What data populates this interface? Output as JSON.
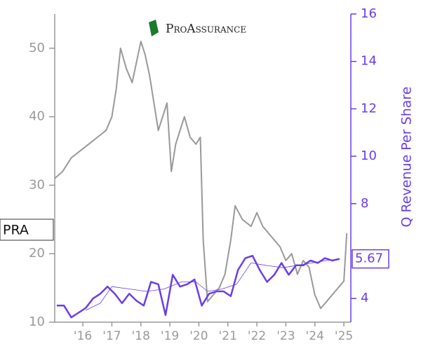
{
  "chart_data": {
    "type": "line",
    "logo": "ProAssurance",
    "ticker": "PRA",
    "y2label": "Q Revenue Per Share",
    "xlim": [
      2015.03,
      2025.24
    ],
    "xticks": [
      {
        "value": 2016,
        "label": "'16"
      },
      {
        "value": 2017,
        "label": "'17"
      },
      {
        "value": 2018,
        "label": "'18"
      },
      {
        "value": 2019,
        "label": "'19"
      },
      {
        "value": 2020,
        "label": "'20"
      },
      {
        "value": 2021,
        "label": "'21"
      },
      {
        "value": 2022,
        "label": "'22"
      },
      {
        "value": 2023,
        "label": "'23"
      },
      {
        "value": 2024,
        "label": "'24"
      },
      {
        "value": 2025,
        "label": "'25"
      }
    ],
    "ylim": [
      10,
      55
    ],
    "yticks": [
      10,
      20,
      30,
      40,
      50
    ],
    "y2lim": [
      3,
      16
    ],
    "y2ticks": [
      4,
      8,
      10,
      12,
      14,
      16
    ],
    "series": [
      {
        "color": "#999999",
        "width": 2,
        "x": [
          2015.03,
          2015.3,
          2015.6,
          2015.9,
          2016.2,
          2016.5,
          2016.8,
          2017.0,
          2017.15,
          2017.3,
          2017.5,
          2017.7,
          2017.85,
          2018.0,
          2018.15,
          2018.3,
          2018.45,
          2018.6,
          2018.75,
          2018.9,
          2019.05,
          2019.2,
          2019.35,
          2019.5,
          2019.7,
          2019.9,
          2020.05,
          2020.15,
          2020.3,
          2020.5,
          2020.7,
          2020.9,
          2021.1,
          2021.25,
          2021.5,
          2021.8,
          2022.0,
          2022.2,
          2022.4,
          2022.6,
          2022.8,
          2023.0,
          2023.2,
          2023.4,
          2023.6,
          2023.8,
          2024.0,
          2024.2,
          2024.4,
          2024.6,
          2024.8,
          2025.0,
          2025.1
        ],
        "values": [
          31,
          32,
          34,
          35,
          36,
          37,
          38,
          40,
          44,
          50,
          47,
          45,
          48,
          51,
          49,
          46,
          42,
          38,
          40,
          42,
          32,
          36,
          38,
          40,
          37,
          36,
          37,
          22,
          13,
          14,
          15,
          17,
          22,
          27,
          25,
          24,
          26,
          24,
          23,
          22,
          21,
          19,
          20,
          17,
          19,
          18,
          14,
          12,
          13,
          14,
          15,
          16,
          23
        ]
      },
      {
        "color": "#6a3de8",
        "width": 2.5,
        "axis": "y2",
        "x": [
          2015.1,
          2015.35,
          2015.6,
          2015.85,
          2016.1,
          2016.35,
          2016.6,
          2016.85,
          2017.1,
          2017.35,
          2017.6,
          2017.85,
          2018.1,
          2018.35,
          2018.6,
          2018.85,
          2019.1,
          2019.35,
          2019.6,
          2019.85,
          2020.1,
          2020.35,
          2020.6,
          2020.85,
          2021.1,
          2021.35,
          2021.6,
          2021.85,
          2022.1,
          2022.35,
          2022.6,
          2022.85,
          2023.1,
          2023.35,
          2023.6,
          2023.85,
          2024.1,
          2024.35,
          2024.6,
          2024.85
        ],
        "values": [
          3.7,
          3.7,
          3.2,
          3.4,
          3.6,
          4.0,
          4.2,
          4.5,
          4.2,
          3.8,
          4.2,
          3.9,
          3.7,
          4.7,
          4.6,
          3.3,
          5.0,
          4.5,
          4.6,
          4.8,
          3.7,
          4.2,
          4.3,
          4.3,
          4.1,
          5.2,
          5.7,
          5.8,
          5.2,
          4.7,
          5.0,
          5.5,
          5.0,
          5.4,
          5.4,
          5.6,
          5.5,
          5.7,
          5.6,
          5.67
        ]
      },
      {
        "color": "#6a3de8",
        "width": 0.8,
        "axis": "y2",
        "x": [
          2016.1,
          2016.6,
          2017.0,
          2017.6,
          2018.2,
          2018.8,
          2019.4,
          2019.9,
          2020.3,
          2020.8,
          2021.3,
          2021.8,
          2022.3,
          2022.9,
          2023.4,
          2023.9,
          2024.4,
          2024.85
        ],
        "values": [
          3.5,
          3.8,
          4.5,
          4.4,
          4.3,
          4.4,
          4.7,
          4.7,
          4.3,
          4.4,
          4.6,
          5.5,
          5.4,
          5.3,
          5.4,
          5.5,
          5.6,
          5.67
        ]
      }
    ]
  }
}
